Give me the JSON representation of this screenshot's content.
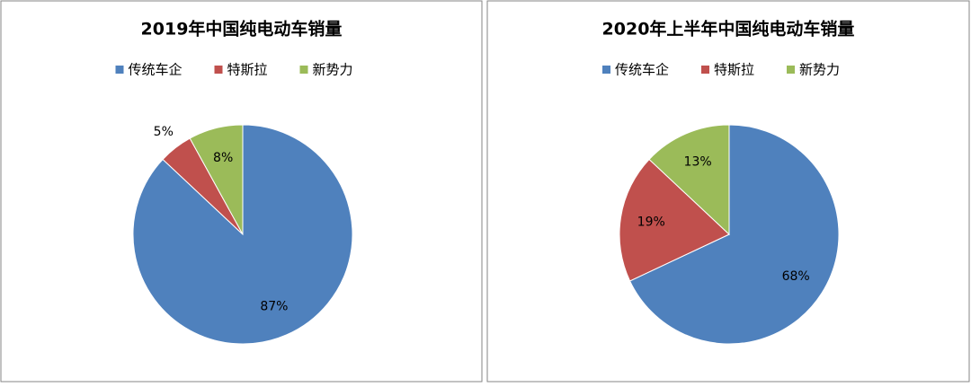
{
  "chart_data": [
    {
      "type": "pie",
      "title": "2019年中国纯电动车销量",
      "categories": [
        "传统车企",
        "特斯拉",
        "新势力"
      ],
      "values": [
        87,
        5,
        8
      ],
      "value_labels": [
        "87%",
        "5%",
        "8%"
      ],
      "colors": [
        "#4f81bd",
        "#c0504d",
        "#9bbb59"
      ],
      "legend": "top"
    },
    {
      "type": "pie",
      "title": "2020年上半年中国纯电动车销量",
      "categories": [
        "传统车企",
        "特斯拉",
        "新势力"
      ],
      "values": [
        68,
        19,
        13
      ],
      "value_labels": [
        "68%",
        "19%",
        "13%"
      ],
      "colors": [
        "#4f81bd",
        "#c0504d",
        "#9bbb59"
      ],
      "legend": "top"
    }
  ]
}
